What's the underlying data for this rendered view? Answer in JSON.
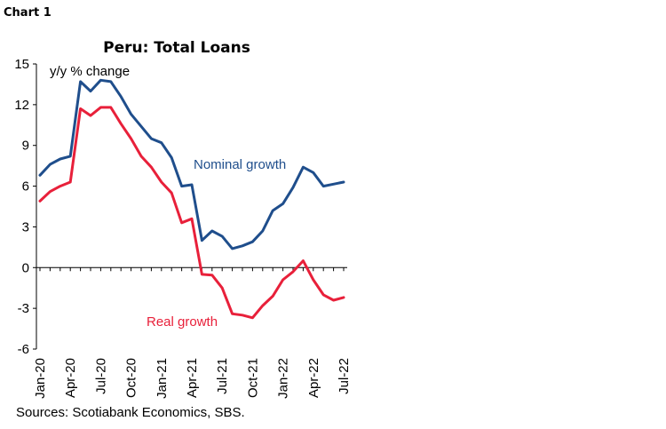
{
  "header": {
    "chart_label": "Chart 1"
  },
  "footer": {
    "source": "Sources: Scotiabank Economics, SBS."
  },
  "chart_data": {
    "type": "line",
    "title": "Peru: Total Loans",
    "unit_label": "y/y  % change",
    "ylim": [
      -6,
      15
    ],
    "yticks": [
      15,
      12,
      9,
      6,
      3,
      0,
      -3,
      -6
    ],
    "x_tick_labels": [
      "Jan-20",
      "Apr-20",
      "Jul-20",
      "Oct-20",
      "Jan-21",
      "Apr-21",
      "Jul-21",
      "Oct-21",
      "Jan-22",
      "Apr-22",
      "Jul-22"
    ],
    "x": [
      "Jan-20",
      "Feb-20",
      "Mar-20",
      "Apr-20",
      "May-20",
      "Jun-20",
      "Jul-20",
      "Aug-20",
      "Sep-20",
      "Oct-20",
      "Nov-20",
      "Dec-20",
      "Jan-21",
      "Feb-21",
      "Mar-21",
      "Apr-21",
      "May-21",
      "Jun-21",
      "Jul-21",
      "Aug-21",
      "Sep-21",
      "Oct-21",
      "Nov-21",
      "Dec-21",
      "Jan-22",
      "Feb-22",
      "Mar-22",
      "Apr-22",
      "May-22",
      "Jun-22",
      "Jul-22"
    ],
    "series": [
      {
        "name": "Nominal growth",
        "color": "#1f4e8c",
        "values": [
          6.8,
          7.6,
          8.0,
          8.2,
          13.7,
          13.0,
          13.8,
          13.7,
          12.6,
          11.3,
          10.4,
          9.5,
          9.2,
          8.1,
          6.0,
          6.1,
          2.0,
          2.7,
          2.3,
          1.4,
          1.6,
          1.9,
          2.7,
          4.2,
          4.7,
          5.9,
          7.4,
          7.0,
          6.0,
          6.15,
          6.3
        ]
      },
      {
        "name": "Real growth",
        "color": "#e8203a",
        "values": [
          4.9,
          5.6,
          6.0,
          6.3,
          11.7,
          11.2,
          11.8,
          11.8,
          10.6,
          9.5,
          8.2,
          7.4,
          6.3,
          5.5,
          3.3,
          3.6,
          -0.5,
          -0.55,
          -1.5,
          -3.4,
          -3.5,
          -3.7,
          -2.8,
          -2.1,
          -0.9,
          -0.3,
          0.5,
          -0.9,
          -2.0,
          -2.4,
          -2.2
        ]
      }
    ],
    "grid": false,
    "legend": "inline labels"
  }
}
